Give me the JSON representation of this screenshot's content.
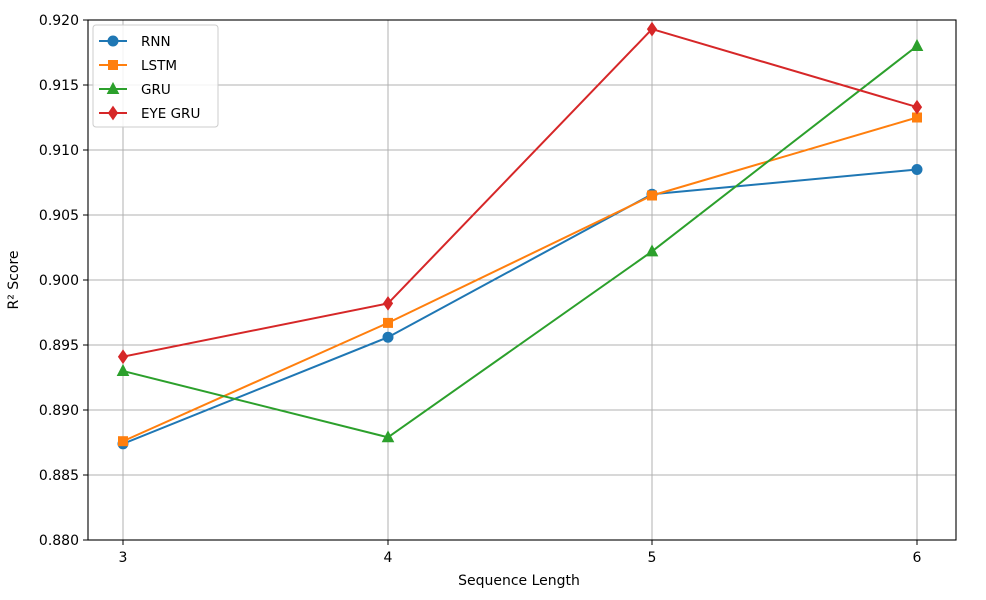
{
  "chart_data": {
    "type": "line",
    "title": "",
    "xlabel": "Sequence Length",
    "ylabel": "R² Score",
    "x": [
      3,
      4,
      5,
      6
    ],
    "xticks": [
      "3",
      "4",
      "5",
      "6"
    ],
    "ylim": [
      0.88,
      0.92
    ],
    "yticks": [
      "0.880",
      "0.885",
      "0.890",
      "0.895",
      "0.900",
      "0.905",
      "0.910",
      "0.915",
      "0.920"
    ],
    "grid": true,
    "legend_position": "top-left",
    "series": [
      {
        "name": "RNN",
        "values": [
          0.8874,
          0.8956,
          0.9066,
          0.9085
        ],
        "color": "#1f77b4",
        "marker": "circle"
      },
      {
        "name": "LSTM",
        "values": [
          0.8876,
          0.8967,
          0.9065,
          0.9125
        ],
        "color": "#ff7f0e",
        "marker": "square"
      },
      {
        "name": "GRU",
        "values": [
          0.893,
          0.8879,
          0.9022,
          0.918
        ],
        "color": "#2ca02c",
        "marker": "triangle"
      },
      {
        "name": "EYE GRU",
        "values": [
          0.8941,
          0.8982,
          0.9193,
          0.9133
        ],
        "color": "#d62728",
        "marker": "diamond"
      }
    ]
  }
}
